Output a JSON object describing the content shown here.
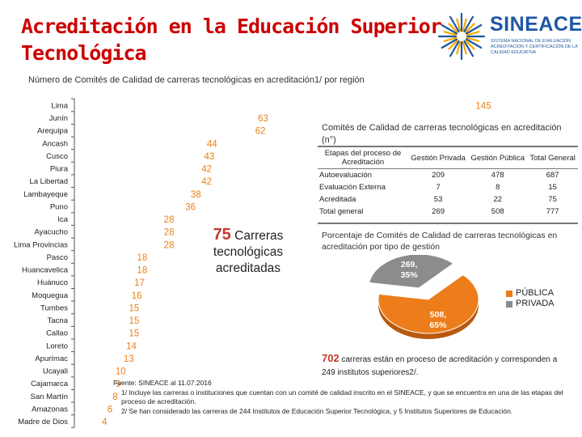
{
  "title": "Acreditación en la Educación Superior Tecnológica",
  "logo": {
    "brand": "SINEACE",
    "subtext": "SISTEMA NACIONAL DE EVALUACIÓN ACREDITACIÓN Y CERTIFICACIÓN DE LA CALIDAD EDUCATIVA"
  },
  "subtitle": "Número de Comités de Calidad de carreras tecnológicas en acreditación1/ por región",
  "colors": {
    "title": "#cc0000",
    "bar_value": "#e8801a",
    "publica": "#ec7d1a",
    "privada": "#8c8c8c",
    "brand": "#1f57a4"
  },
  "chart_data": [
    {
      "type": "bar",
      "orientation": "horizontal",
      "categories": [
        "Lima",
        "Junín",
        "Arequipa",
        "Ancash",
        "Cusco",
        "Piura",
        "La Libertad",
        "Lambayeque",
        "Puno",
        "Ica",
        "Ayacucho",
        "Lima Provincias",
        "Pasco",
        "Huancavelica",
        "Huánuco",
        "Moquegua",
        "Tumbes",
        "Tacna",
        "Callao",
        "Loreto",
        "Apurímac",
        "Ucayali",
        "Cajamarca",
        "San Martín",
        "Amazonas",
        "Madre de Dios"
      ],
      "values": [
        145,
        63,
        62,
        44,
        43,
        42,
        42,
        38,
        36,
        28,
        28,
        28,
        18,
        18,
        17,
        16,
        15,
        15,
        15,
        14,
        13,
        10,
        9,
        8,
        6,
        4
      ],
      "xlim": [
        0,
        145
      ]
    },
    {
      "type": "pie",
      "title": "Porcentaje de Comités de Calidad de carreras tecnológicas en acreditación por tipo de gestión",
      "slices": [
        {
          "name": "PÚBLICA",
          "value": 508,
          "label": "508,\n65%"
        },
        {
          "name": "PRIVADA",
          "value": 269,
          "label": "269,\n35%"
        }
      ],
      "legend": "right"
    }
  ],
  "callout": {
    "number": "75",
    "text": "Carreras tecnológicas acreditadas"
  },
  "table": {
    "title": "Comités de Calidad de carreras tecnológicas en acreditación (n°)",
    "headers": [
      "Etapas del proceso de Acreditación",
      "Gestión Privada",
      "Gestión Pública",
      "Total General"
    ],
    "rows": [
      [
        "Autoevaluación",
        "209",
        "478",
        "687"
      ],
      [
        "Evaluación Externa",
        "7",
        "8",
        "15"
      ],
      [
        "Acreditada",
        "53",
        "22",
        "75"
      ],
      [
        "Total general",
        "269",
        "508",
        "777"
      ]
    ]
  },
  "note": {
    "number": "702",
    "text": "carreras están en proceso de acreditación y corresponden a 249 institutos superiores2/."
  },
  "footnotes": {
    "source": "Fuente: SINEACE al 11.07.2016",
    "note1": "1/ Incluye las carreras o instituciones que cuentan con un comité de calidad inscrito en el SINEACE, y que se encuentra en una de las etapas del proceso de acreditación.",
    "note2": "2/ Se han considerado las carreras de 244 Institutos de Educación Superior Tecnológica, y 5 Institutos Superiores de Educación."
  }
}
